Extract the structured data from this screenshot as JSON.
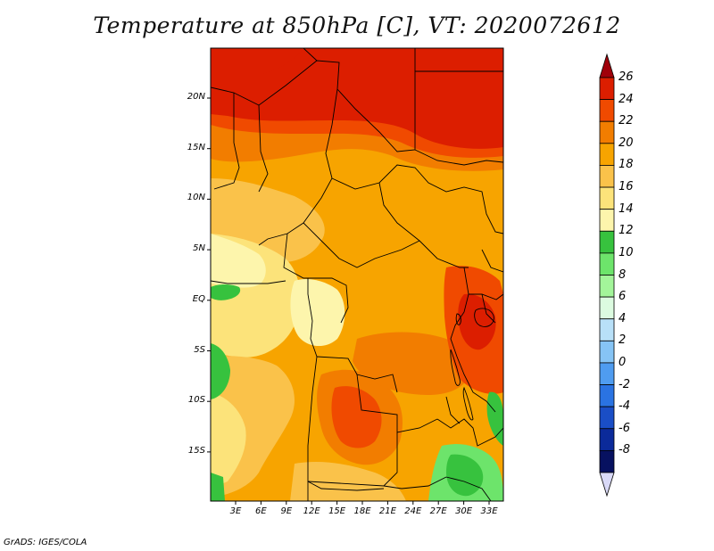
{
  "title": "Temperature at 850hPa [C], VT: 2020072612",
  "credit": "GrADS: IGES/COLA",
  "map": {
    "y_ticks": [
      "20N",
      "15N",
      "10N",
      "5N",
      "EQ",
      "5S",
      "10S",
      "15S"
    ],
    "x_ticks": [
      "3E",
      "6E",
      "9E",
      "12E",
      "15E",
      "18E",
      "21E",
      "24E",
      "27E",
      "30E",
      "33E"
    ]
  },
  "colorbar": {
    "labels": [
      "26",
      "24",
      "22",
      "20",
      "18",
      "16",
      "14",
      "12",
      "10",
      "8",
      "6",
      "4",
      "2",
      "0",
      "-2",
      "-4",
      "-6",
      "-8"
    ],
    "colors": [
      "#a0000a",
      "#dc1e00",
      "#f04a00",
      "#f27d00",
      "#f7a400",
      "#fac24a",
      "#fce37a",
      "#fdf5ac",
      "#37c23e",
      "#6de46b",
      "#a3f59a",
      "#dcfbe0",
      "#b8e0f8",
      "#86c4f5",
      "#4f9cf0",
      "#2a73e2",
      "#1a4ec6",
      "#0b2a9a",
      "#071160",
      "#d9d9f7"
    ]
  }
}
